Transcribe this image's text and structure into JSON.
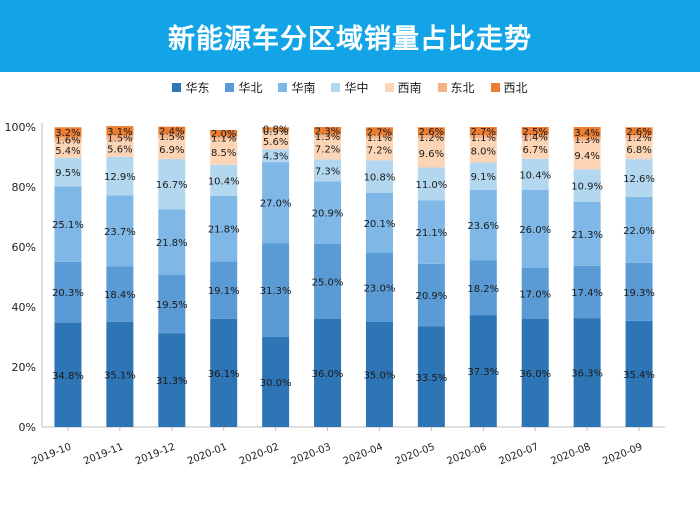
{
  "title": "新能源车分区域销量占比走势",
  "chart_data": {
    "type": "bar",
    "stacked": true,
    "categories": [
      "2019-10",
      "2019-11",
      "2019-12",
      "2020-01",
      "2020-02",
      "2020-03",
      "2020-04",
      "2020-05",
      "2020-06",
      "2020-07",
      "2020-08",
      "2020-09"
    ],
    "series": [
      {
        "name": "华东",
        "color": "#2e75b6",
        "values": [
          34.8,
          35.1,
          31.3,
          36.1,
          30.0,
          36.0,
          35.0,
          33.5,
          37.3,
          36.0,
          36.3,
          35.4
        ]
      },
      {
        "name": "华北",
        "color": "#5b9bd5",
        "values": [
          20.3,
          18.4,
          19.5,
          19.1,
          31.3,
          25.0,
          23.0,
          20.9,
          18.2,
          17.0,
          17.4,
          19.3
        ]
      },
      {
        "name": "华南",
        "color": "#7fb8e6",
        "values": [
          25.1,
          23.7,
          21.8,
          21.8,
          27.0,
          20.9,
          20.1,
          21.1,
          23.6,
          26.0,
          21.3,
          22.0
        ]
      },
      {
        "name": "华中",
        "color": "#b4d7f0",
        "values": [
          9.5,
          12.9,
          16.7,
          10.4,
          4.3,
          7.3,
          10.8,
          11.0,
          9.1,
          10.4,
          10.9,
          12.6
        ]
      },
      {
        "name": "西南",
        "color": "#fbd5b5",
        "values": [
          5.4,
          5.6,
          6.9,
          8.5,
          5.6,
          7.2,
          7.2,
          9.6,
          8.0,
          6.7,
          9.4,
          6.8
        ]
      },
      {
        "name": "东北",
        "color": "#f4b183",
        "values": [
          1.6,
          1.5,
          1.5,
          1.1,
          0.9,
          1.3,
          1.1,
          1.2,
          1.1,
          1.4,
          1.3,
          1.2
        ]
      },
      {
        "name": "西北",
        "color": "#ed7d31",
        "values": [
          3.2,
          3.1,
          2.4,
          2.0,
          0.8,
          2.3,
          2.7,
          2.6,
          2.7,
          2.5,
          3.4,
          2.6
        ]
      }
    ],
    "yticks": [
      "0%",
      "20%",
      "40%",
      "60%",
      "80%",
      "100%"
    ],
    "ylim": [
      0,
      100
    ],
    "grid": false,
    "legend_position": "top"
  }
}
